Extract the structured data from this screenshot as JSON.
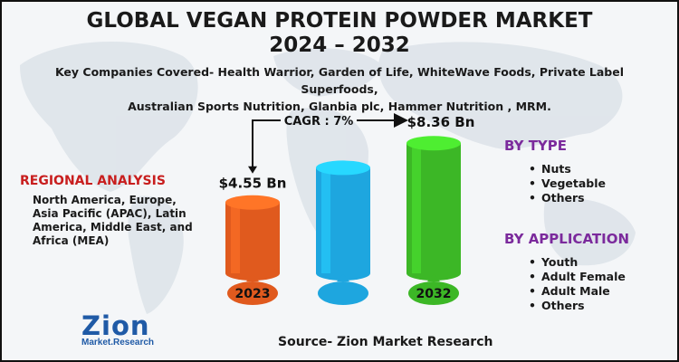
{
  "header": {
    "title_line1": "GLOBAL VEGAN PROTEIN POWDER MARKET",
    "title_line2": "2024 – 2032",
    "companies_line1": "Key Companies Covered- Health Warrior, Garden of Life, WhiteWave Foods, Private Label Superfoods,",
    "companies_line2": "Australian Sports Nutrition, Glanbia plc, Hammer Nutrition , MRM."
  },
  "regional": {
    "title": "REGIONAL ANALYSIS",
    "text": "North America, Europe, Asia Pacific (APAC), Latin America, Middle East, and Africa (MEA)"
  },
  "by_type": {
    "title": "BY TYPE",
    "items": [
      "Nuts",
      "Vegetable",
      "Others"
    ]
  },
  "by_application": {
    "title": "BY APPLICATION",
    "items": [
      "Youth",
      "Adult Female",
      "Adult Male",
      "Others"
    ]
  },
  "chart_data": {
    "type": "bar",
    "categories": [
      "2023",
      "",
      "2032"
    ],
    "values": [
      4.55,
      null,
      8.36
    ],
    "value_labels": [
      "$4.55 Bn",
      "",
      "$8.36 Bn"
    ],
    "annotation": "CAGR : 7%",
    "colors": [
      "#e05a1e",
      "#1ea6df",
      "#3cb726"
    ]
  },
  "source": "Source- Zion Market Research",
  "logo": {
    "name": "Zion",
    "tagline": "Market.Research"
  }
}
